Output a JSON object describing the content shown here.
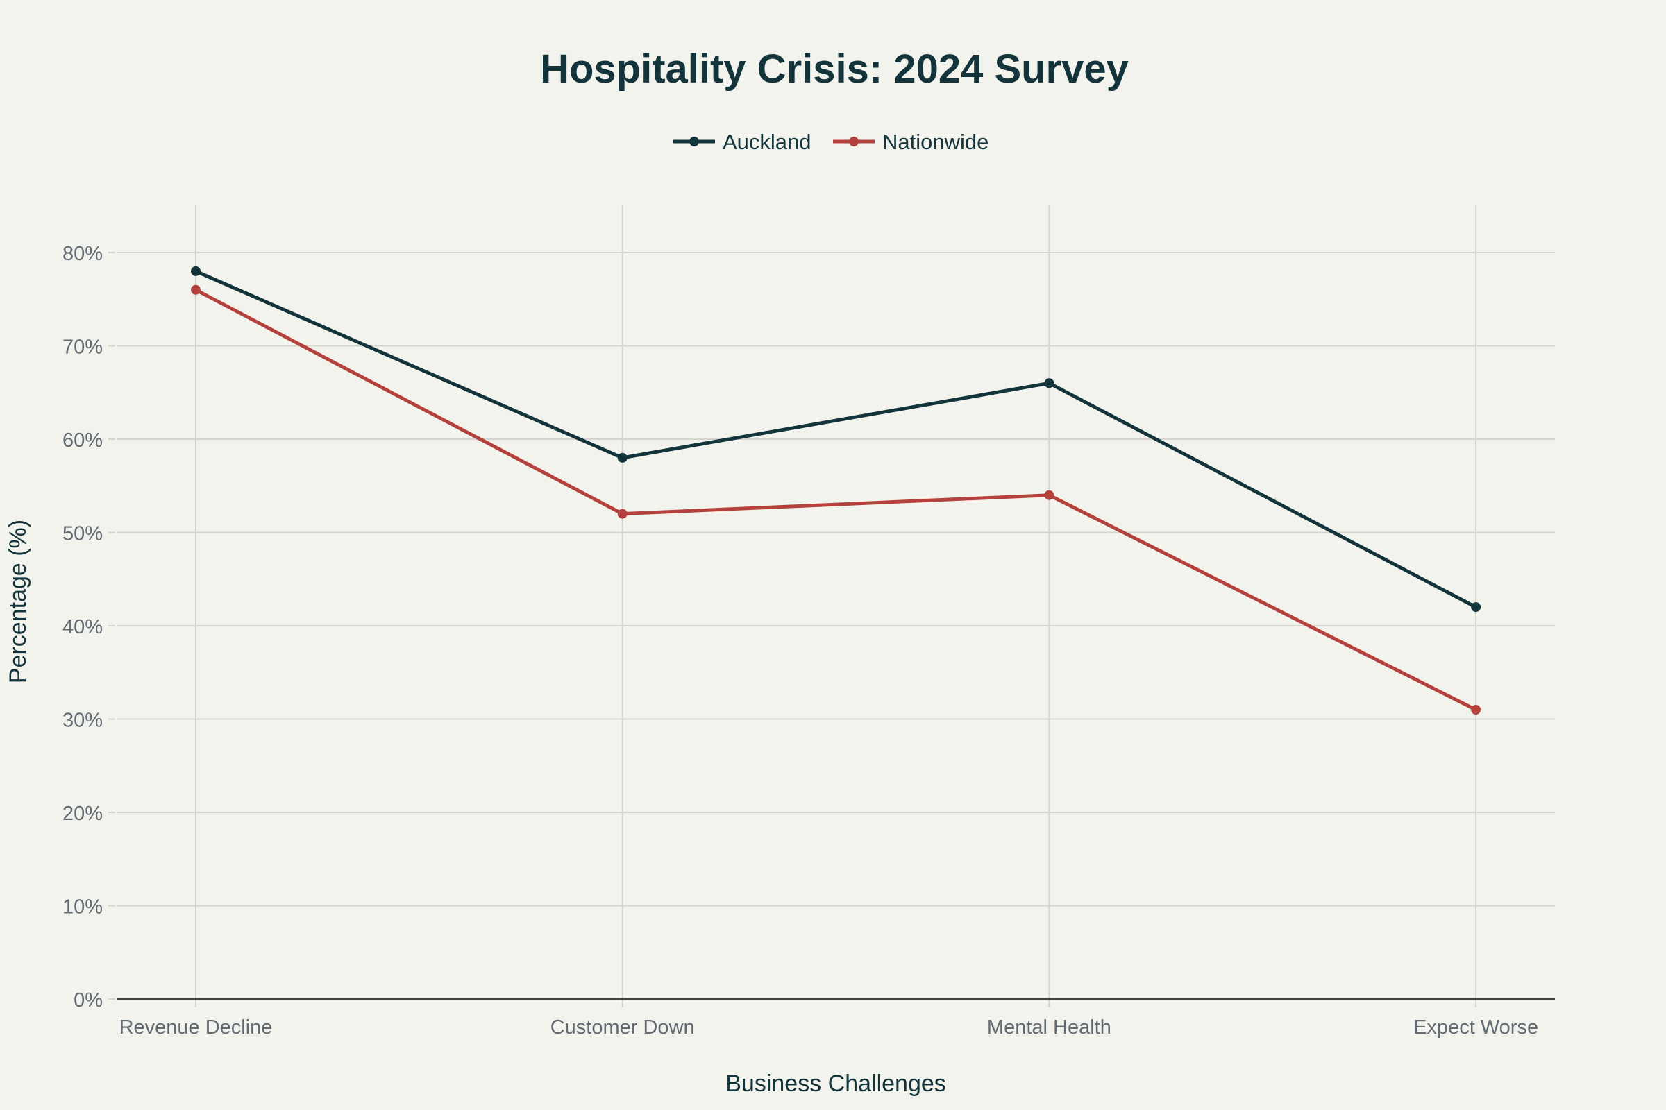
{
  "chart_data": {
    "type": "line",
    "title": "Hospitality Crisis: 2024 Survey",
    "xlabel": "Business Challenges",
    "ylabel": "Percentage (%)",
    "categories": [
      "Revenue Decline",
      "Customer Down",
      "Mental Health",
      "Expect Worse"
    ],
    "series": [
      {
        "name": "Auckland",
        "color": "#13343b",
        "values": [
          78,
          58,
          66,
          42
        ]
      },
      {
        "name": "Nationwide",
        "color": "#b4413c",
        "values": [
          76,
          52,
          54,
          31
        ]
      }
    ],
    "ylim": [
      0,
      85
    ],
    "yticks": [
      0,
      10,
      20,
      30,
      40,
      50,
      60,
      70,
      80
    ],
    "ytick_suffix": "%",
    "grid": true,
    "legend_position": "top-center",
    "markers": true
  }
}
